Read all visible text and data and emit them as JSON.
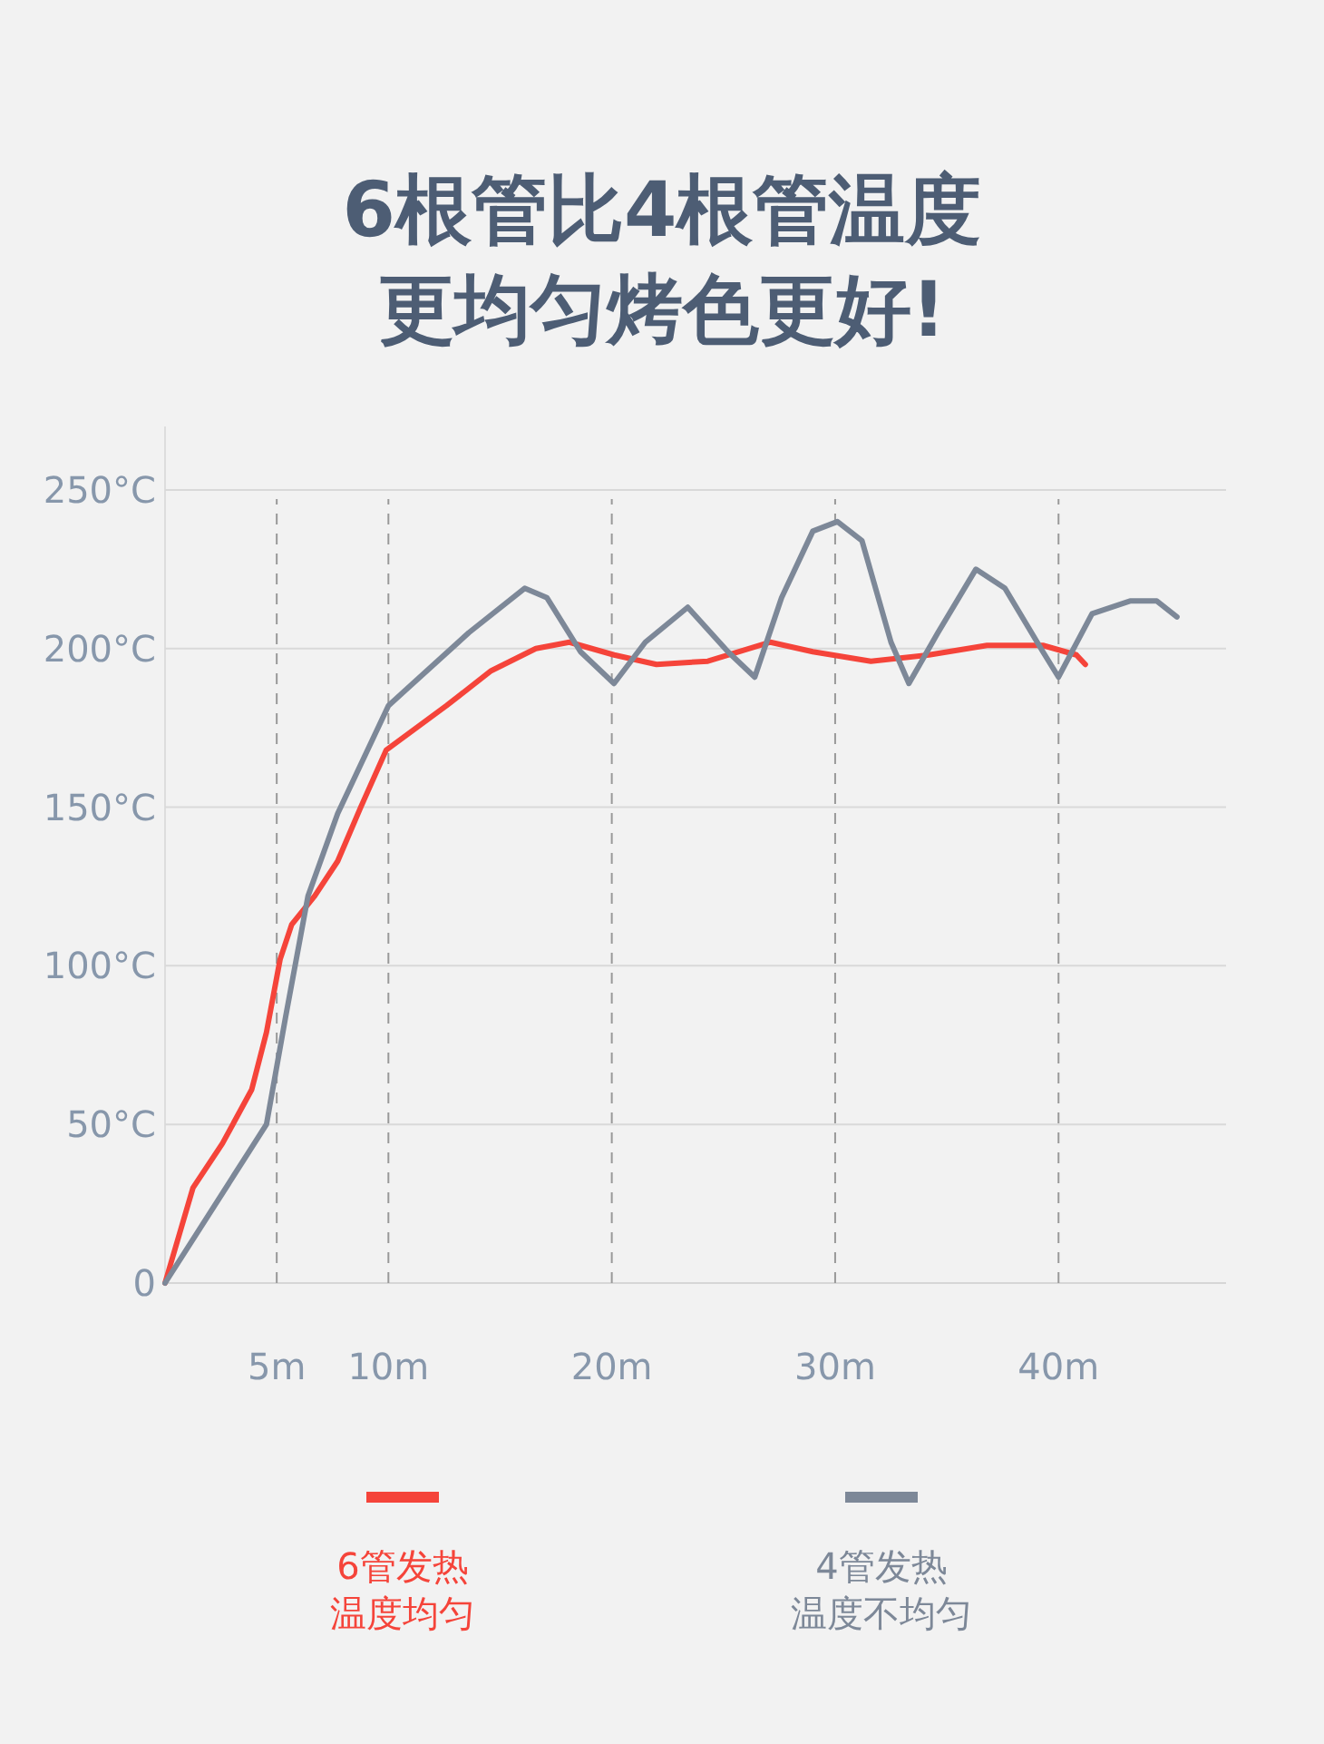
{
  "chart_data": {
    "type": "line",
    "title": "6根管比4根管温度更均匀烤色更好!",
    "xlim": [
      0,
      47.5
    ],
    "xticks": [
      {
        "value": 5,
        "label": "5m"
      },
      {
        "value": 10,
        "label": "10m"
      },
      {
        "value": 20,
        "label": "20m"
      },
      {
        "value": 30,
        "label": "30m"
      },
      {
        "value": 40,
        "label": "40m"
      }
    ],
    "ylim": [
      0,
      270
    ],
    "yticks": [
      {
        "value": 0,
        "label": "0"
      },
      {
        "value": 50,
        "label": "50°C"
      },
      {
        "value": 100,
        "label": "100°C"
      },
      {
        "value": 150,
        "label": "150°C"
      },
      {
        "value": 200,
        "label": "200°C"
      },
      {
        "value": 250,
        "label": "250°C"
      }
    ],
    "grid": true,
    "legend": "bottom",
    "line_style": "solid",
    "series": [
      {
        "name": "6管发热温度均匀",
        "color": "#f5443a",
        "x": [
          0,
          1.25,
          2.57,
          3.88,
          4.54,
          5.15,
          5.67,
          6.7,
          7.73,
          8.76,
          9.9,
          12.6,
          14.6,
          16.6,
          18.1,
          20.1,
          22,
          24.3,
          27.1,
          29,
          31.6,
          34.2,
          36.8,
          39.3,
          40.8,
          41.2
        ],
        "values": [
          0,
          30,
          44,
          61,
          79,
          102,
          113,
          122,
          133,
          150,
          168,
          182,
          193,
          200,
          202,
          198,
          195,
          196,
          202,
          199,
          196,
          198,
          201,
          201,
          198,
          195
        ]
      },
      {
        "name": "4管发热温度不均匀",
        "color": "#7d8898",
        "x": [
          0,
          4.54,
          5.4,
          6.4,
          7.73,
          10,
          13.6,
          16.1,
          17.1,
          18.6,
          20.1,
          21.5,
          23.4,
          25.2,
          26.4,
          27.6,
          29,
          30.1,
          31.2,
          32.5,
          33.3,
          34.6,
          36.3,
          37.6,
          39.3,
          40,
          41.5,
          43.2,
          44.4,
          45.3
        ],
        "values": [
          0,
          50,
          84,
          122,
          148,
          182,
          205,
          219,
          216,
          199,
          189,
          202,
          213,
          199,
          191,
          216,
          237,
          240,
          234,
          202,
          189,
          205,
          225,
          219,
          199,
          191,
          211,
          215,
          215,
          210
        ]
      }
    ]
  }
}
